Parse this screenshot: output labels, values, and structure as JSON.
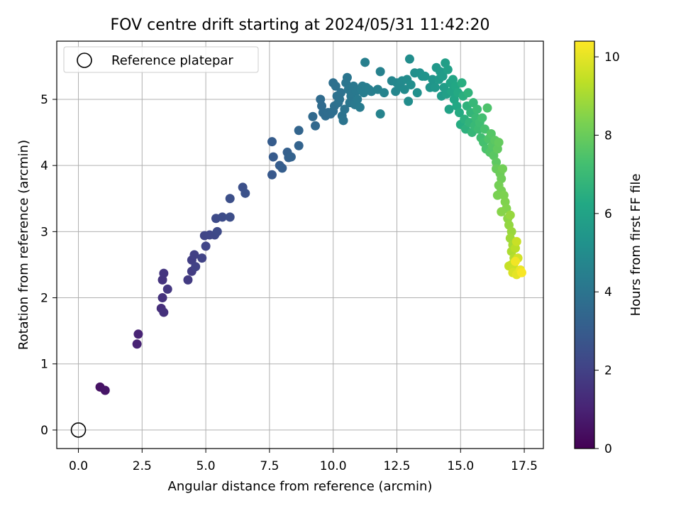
{
  "chart_data": {
    "type": "scatter",
    "title": "FOV centre drift starting at 2024/05/31 11:42:20",
    "xlabel": "Angular distance from reference (arcmin)",
    "ylabel": "Rotation from reference (arcmin)",
    "xlim": [
      -0.85,
      18.25
    ],
    "ylim": [
      -0.28,
      5.88
    ],
    "xticks": [
      0.0,
      2.5,
      5.0,
      7.5,
      10.0,
      12.5,
      15.0,
      17.5
    ],
    "xtick_labels": [
      "0.0",
      "2.5",
      "5.0",
      "7.5",
      "10.0",
      "12.5",
      "15.0",
      "17.5"
    ],
    "yticks": [
      0,
      1,
      2,
      3,
      4,
      5
    ],
    "ytick_labels": [
      "0",
      "1",
      "2",
      "3",
      "4",
      "5"
    ],
    "grid": true,
    "legend": {
      "position": "upper-left",
      "entries": [
        {
          "label": "Reference platepar",
          "marker": "open-circle"
        }
      ]
    },
    "reference_point": {
      "x": 0,
      "y": 0
    },
    "colorbar": {
      "label": "Hours from first FF file",
      "colormap": "viridis",
      "range": [
        0,
        10.4
      ],
      "ticks": [
        0,
        2,
        4,
        6,
        8,
        10
      ],
      "tick_labels": [
        "0",
        "2",
        "4",
        "6",
        "8",
        "10"
      ]
    },
    "series": [
      {
        "color_key": "hours",
        "points": [
          [
            0.85,
            0.65,
            0.5
          ],
          [
            1.05,
            0.6,
            0.6
          ],
          [
            2.3,
            1.3,
            1.0
          ],
          [
            2.35,
            1.45,
            1.05
          ],
          [
            3.25,
            1.84,
            1.4
          ],
          [
            3.35,
            1.78,
            1.45
          ],
          [
            3.3,
            2.0,
            1.5
          ],
          [
            3.3,
            2.27,
            1.55
          ],
          [
            3.35,
            2.37,
            1.6
          ],
          [
            3.5,
            2.13,
            1.65
          ],
          [
            4.3,
            2.27,
            1.8
          ],
          [
            4.45,
            2.4,
            1.85
          ],
          [
            4.45,
            2.57,
            1.9
          ],
          [
            4.55,
            2.65,
            1.95
          ],
          [
            4.6,
            2.47,
            2.0
          ],
          [
            4.85,
            2.6,
            2.05
          ],
          [
            5.0,
            2.78,
            2.1
          ],
          [
            4.95,
            2.94,
            2.15
          ],
          [
            5.15,
            2.95,
            2.2
          ],
          [
            5.35,
            2.95,
            2.25
          ],
          [
            5.45,
            3.0,
            2.3
          ],
          [
            5.4,
            3.2,
            2.35
          ],
          [
            5.65,
            3.22,
            2.4
          ],
          [
            5.95,
            3.22,
            2.45
          ],
          [
            5.95,
            3.5,
            2.5
          ],
          [
            6.45,
            3.67,
            2.55
          ],
          [
            6.55,
            3.58,
            2.6
          ],
          [
            7.6,
            3.86,
            2.9
          ],
          [
            7.65,
            4.13,
            2.95
          ],
          [
            7.6,
            4.36,
            3.0
          ],
          [
            7.9,
            4.0,
            3.05
          ],
          [
            8.0,
            3.96,
            3.1
          ],
          [
            8.2,
            4.2,
            3.15
          ],
          [
            8.25,
            4.12,
            3.2
          ],
          [
            8.35,
            4.13,
            3.25
          ],
          [
            8.65,
            4.3,
            3.3
          ],
          [
            8.65,
            4.53,
            3.35
          ],
          [
            9.3,
            4.6,
            3.5
          ],
          [
            9.2,
            4.74,
            3.55
          ],
          [
            9.5,
            5.0,
            3.6
          ],
          [
            9.55,
            4.9,
            3.62
          ],
          [
            9.6,
            4.8,
            3.65
          ],
          [
            9.7,
            4.75,
            3.68
          ],
          [
            9.8,
            4.8,
            3.7
          ],
          [
            9.9,
            4.78,
            3.72
          ],
          [
            10.0,
            4.82,
            3.75
          ],
          [
            10.05,
            4.9,
            3.78
          ],
          [
            10.0,
            5.25,
            3.8
          ],
          [
            10.1,
            5.2,
            3.82
          ],
          [
            10.15,
            5.05,
            3.85
          ],
          [
            10.2,
            4.95,
            3.88
          ],
          [
            10.25,
            5.0,
            3.9
          ],
          [
            10.3,
            5.1,
            3.92
          ],
          [
            10.35,
            4.75,
            3.95
          ],
          [
            10.4,
            4.68,
            3.98
          ],
          [
            10.45,
            4.85,
            4.0
          ],
          [
            10.5,
            5.25,
            4.02
          ],
          [
            10.55,
            5.33,
            4.05
          ],
          [
            10.6,
            5.15,
            4.08
          ],
          [
            10.65,
            4.95,
            4.1
          ],
          [
            10.7,
            5.05,
            4.12
          ],
          [
            10.75,
            5.1,
            4.15
          ],
          [
            10.8,
            5.2,
            4.18
          ],
          [
            10.85,
            4.92,
            4.2
          ],
          [
            10.9,
            5.12,
            4.22
          ],
          [
            10.95,
            5.0,
            4.25
          ],
          [
            11.05,
            4.88,
            4.28
          ],
          [
            11.1,
            5.15,
            4.3
          ],
          [
            11.15,
            5.2,
            4.32
          ],
          [
            11.2,
            5.1,
            4.35
          ],
          [
            11.3,
            5.18,
            4.38
          ],
          [
            11.4,
            5.15,
            4.4
          ],
          [
            11.5,
            5.12,
            4.42
          ],
          [
            11.25,
            5.56,
            4.45
          ],
          [
            11.75,
            5.15,
            4.5
          ],
          [
            11.85,
            5.42,
            4.55
          ],
          [
            11.85,
            4.78,
            4.6
          ],
          [
            12.0,
            5.1,
            4.62
          ],
          [
            12.3,
            5.28,
            4.7
          ],
          [
            12.45,
            5.12,
            4.75
          ],
          [
            12.5,
            5.25,
            4.8
          ],
          [
            12.6,
            5.2,
            4.85
          ],
          [
            12.7,
            5.28,
            4.9
          ],
          [
            12.8,
            5.15,
            4.95
          ],
          [
            12.9,
            5.3,
            5.0
          ],
          [
            12.95,
            4.97,
            5.02
          ],
          [
            13.0,
            5.61,
            5.05
          ],
          [
            13.05,
            5.22,
            5.08
          ],
          [
            13.2,
            5.4,
            5.1
          ],
          [
            13.3,
            5.1,
            5.15
          ],
          [
            13.4,
            5.4,
            5.2
          ],
          [
            13.5,
            5.35,
            5.25
          ],
          [
            13.6,
            5.35,
            5.3
          ],
          [
            13.8,
            5.18,
            5.35
          ],
          [
            13.9,
            5.3,
            5.4
          ],
          [
            14.0,
            5.18,
            5.45
          ],
          [
            14.05,
            5.48,
            5.5
          ],
          [
            14.15,
            5.3,
            5.55
          ],
          [
            14.2,
            5.42,
            5.6
          ],
          [
            14.25,
            5.05,
            5.65
          ],
          [
            14.3,
            5.35,
            5.7
          ],
          [
            14.35,
            5.18,
            5.75
          ],
          [
            14.4,
            5.55,
            5.8
          ],
          [
            14.45,
            5.08,
            5.85
          ],
          [
            14.5,
            5.45,
            5.9
          ],
          [
            14.55,
            4.85,
            5.95
          ],
          [
            14.6,
            5.25,
            6.0
          ],
          [
            14.65,
            5.12,
            6.05
          ],
          [
            14.7,
            5.3,
            6.1
          ],
          [
            14.75,
            5.0,
            6.15
          ],
          [
            14.8,
            5.2,
            6.2
          ],
          [
            14.85,
            4.9,
            6.25
          ],
          [
            14.9,
            5.1,
            6.3
          ],
          [
            14.95,
            4.8,
            6.35
          ],
          [
            15.0,
            4.62,
            6.4
          ],
          [
            15.05,
            5.25,
            6.45
          ],
          [
            15.1,
            5.05,
            6.5
          ],
          [
            15.15,
            4.7,
            6.55
          ],
          [
            15.2,
            4.55,
            6.6
          ],
          [
            15.25,
            4.9,
            6.65
          ],
          [
            15.3,
            5.1,
            6.7
          ],
          [
            15.35,
            4.65,
            6.75
          ],
          [
            15.4,
            4.8,
            6.8
          ],
          [
            15.45,
            4.5,
            6.85
          ],
          [
            15.5,
            4.95,
            6.9
          ],
          [
            15.55,
            4.6,
            6.95
          ],
          [
            15.6,
            4.72,
            7.0
          ],
          [
            15.65,
            4.85,
            7.05
          ],
          [
            15.7,
            4.55,
            7.1
          ],
          [
            15.75,
            4.65,
            7.15
          ],
          [
            15.8,
            4.42,
            7.2
          ],
          [
            15.85,
            4.72,
            7.25
          ],
          [
            15.9,
            4.35,
            7.3
          ],
          [
            15.95,
            4.55,
            7.35
          ],
          [
            16.0,
            4.25,
            7.4
          ],
          [
            16.05,
            4.87,
            7.45
          ],
          [
            16.1,
            4.4,
            7.5
          ],
          [
            16.15,
            4.2,
            7.55
          ],
          [
            16.2,
            4.48,
            7.6
          ],
          [
            16.25,
            4.3,
            7.65
          ],
          [
            16.3,
            4.15,
            7.7
          ],
          [
            16.35,
            4.38,
            7.75
          ],
          [
            16.4,
            4.05,
            7.8
          ],
          [
            16.45,
            4.25,
            7.85
          ],
          [
            16.5,
            4.35,
            7.9
          ],
          [
            16.4,
            3.95,
            8.0
          ],
          [
            16.55,
            3.88,
            8.05
          ],
          [
            16.6,
            3.8,
            8.1
          ],
          [
            16.65,
            3.95,
            8.15
          ],
          [
            16.5,
            3.7,
            8.2
          ],
          [
            16.6,
            3.62,
            8.25
          ],
          [
            16.45,
            3.55,
            8.3
          ],
          [
            16.7,
            3.55,
            8.35
          ],
          [
            16.75,
            3.45,
            8.4
          ],
          [
            16.8,
            3.35,
            8.45
          ],
          [
            16.6,
            3.3,
            8.5
          ],
          [
            16.85,
            3.2,
            8.6
          ],
          [
            16.9,
            3.1,
            8.7
          ],
          [
            16.95,
            3.25,
            8.75
          ],
          [
            17.0,
            3.0,
            8.8
          ],
          [
            16.95,
            2.9,
            8.9
          ],
          [
            17.05,
            2.8,
            9.0
          ],
          [
            17.0,
            2.7,
            9.1
          ],
          [
            17.1,
            2.6,
            9.2
          ],
          [
            17.15,
            2.75,
            9.3
          ],
          [
            17.0,
            2.5,
            9.4
          ],
          [
            16.9,
            2.48,
            9.5
          ],
          [
            17.2,
            2.85,
            9.55
          ],
          [
            17.1,
            2.45,
            9.6
          ],
          [
            17.25,
            2.6,
            9.7
          ],
          [
            17.05,
            2.38,
            9.8
          ],
          [
            17.3,
            2.4,
            9.9
          ],
          [
            17.2,
            2.35,
            10.0
          ],
          [
            17.35,
            2.42,
            10.1
          ],
          [
            17.15,
            2.55,
            10.2
          ],
          [
            17.4,
            2.38,
            10.3
          ]
        ]
      }
    ]
  }
}
